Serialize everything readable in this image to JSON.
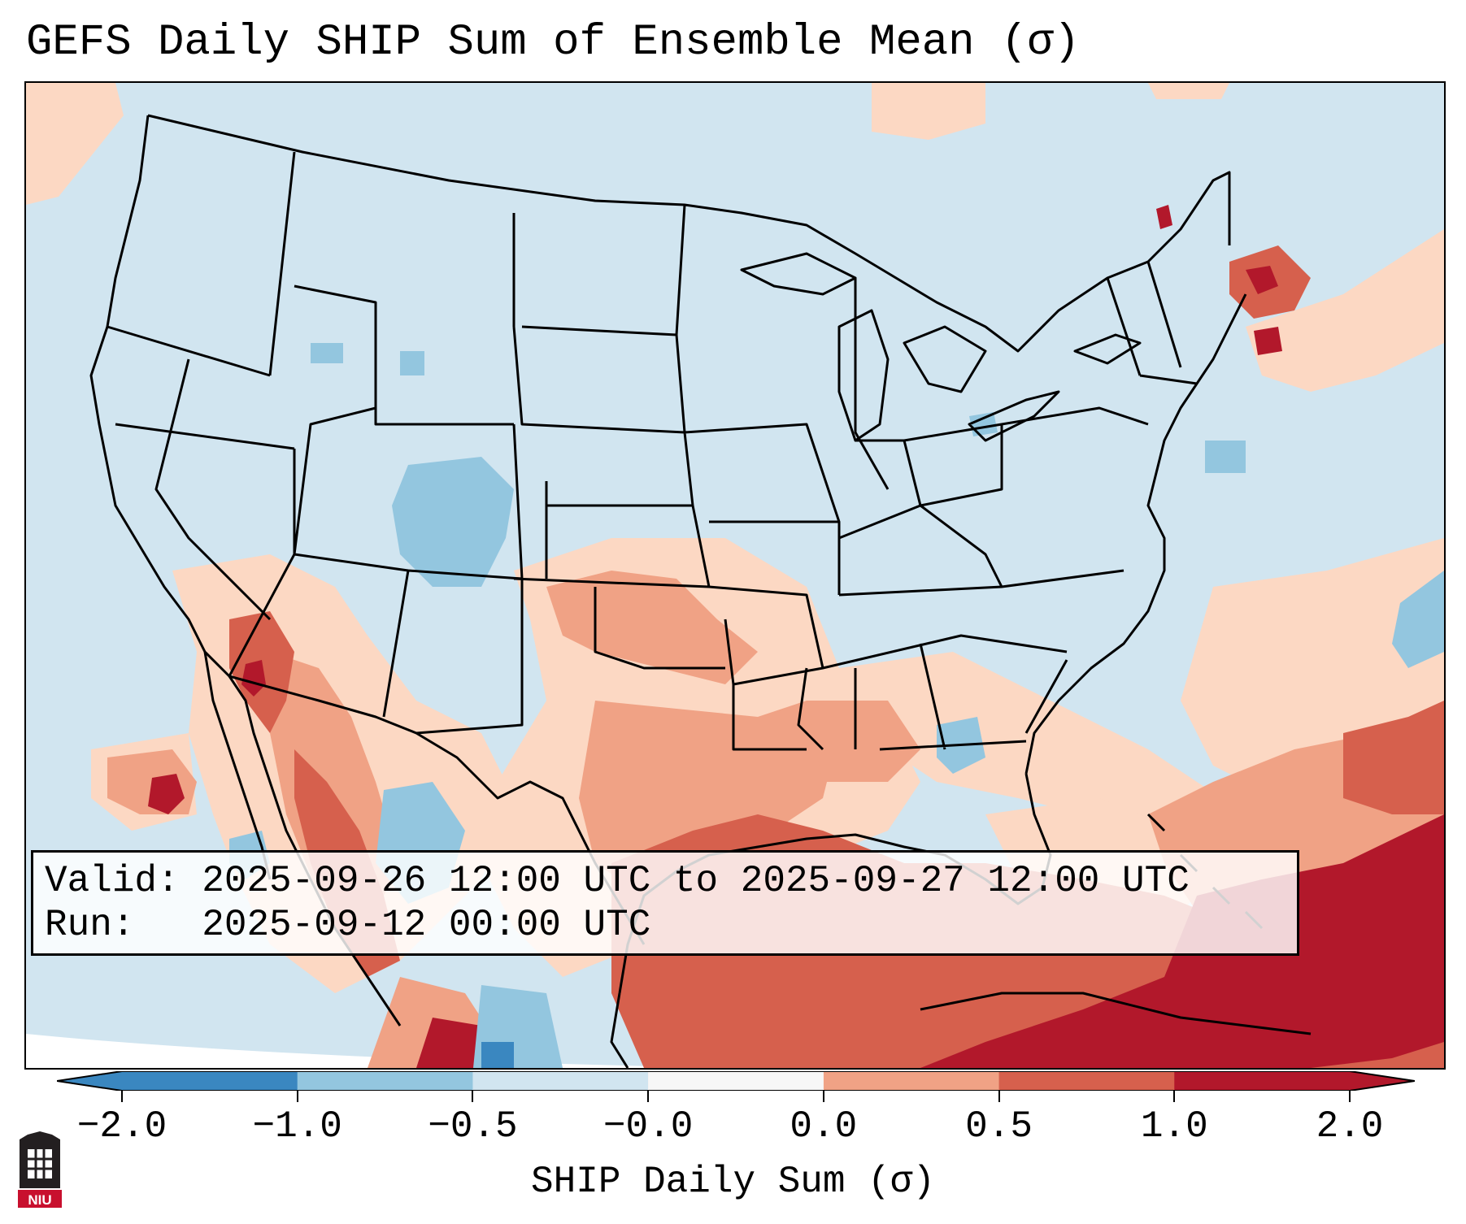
{
  "title": "GEFS Daily SHIP Sum of Ensemble Mean (σ)",
  "info": {
    "valid_line": "Valid: 2025-09-26 12:00 UTC to 2025-09-27 12:00 UTC",
    "run_line": "Run:   2025-09-12 00:00 UTC"
  },
  "colorbar": {
    "label": "SHIP Daily Sum (σ)",
    "tick_labels": [
      "−2.0",
      "−1.0",
      "−0.5",
      "−0.0",
      "0.0",
      "0.5",
      "1.0",
      "2.0"
    ],
    "bin_colors": [
      "#3a87c0",
      "#93c6df",
      "#d1e5f0",
      "#f7f7f7",
      "#fcd8c3",
      "#f0a285",
      "#d6604d",
      "#b2182b"
    ],
    "extend_low_color": "#3a87c0",
    "extend_high_color": "#b2182b"
  },
  "logo": {
    "text": "NIU",
    "color": "#c8102e"
  }
}
